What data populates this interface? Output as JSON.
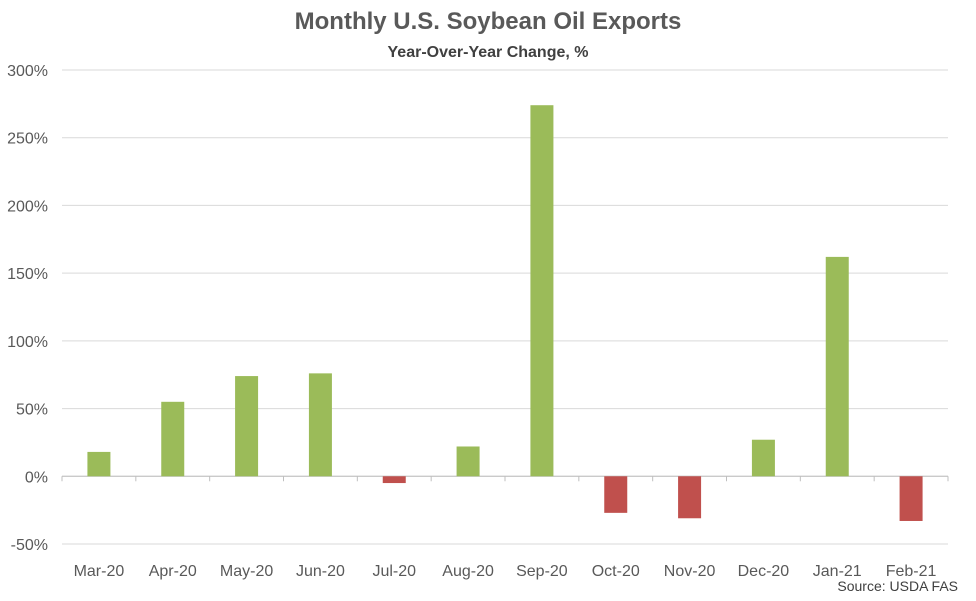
{
  "chart_data": {
    "type": "bar",
    "title": "Monthly U.S. Soybean Oil Exports",
    "subtitle": "Year-Over-Year Change, %",
    "source": "Source: USDA FAS",
    "categories": [
      "Mar-20",
      "Apr-20",
      "May-20",
      "Jun-20",
      "Jul-20",
      "Aug-20",
      "Sep-20",
      "Oct-20",
      "Nov-20",
      "Dec-20",
      "Jan-21",
      "Feb-21"
    ],
    "values": [
      18,
      55,
      74,
      76,
      -5,
      22,
      274,
      -27,
      -31,
      27,
      162,
      -33
    ],
    "ylim": [
      -50,
      300
    ],
    "yticks": [
      300,
      250,
      200,
      150,
      100,
      50,
      0,
      -50
    ],
    "ytick_labels": [
      "300%",
      "250%",
      "200%",
      "150%",
      "100%",
      "50%",
      "0%",
      "-50%"
    ],
    "grid": true,
    "colors": {
      "positive": "#9BBB59",
      "negative": "#C0504D",
      "grid": "#D9D9D9",
      "axis": "#BFBFBF"
    }
  }
}
